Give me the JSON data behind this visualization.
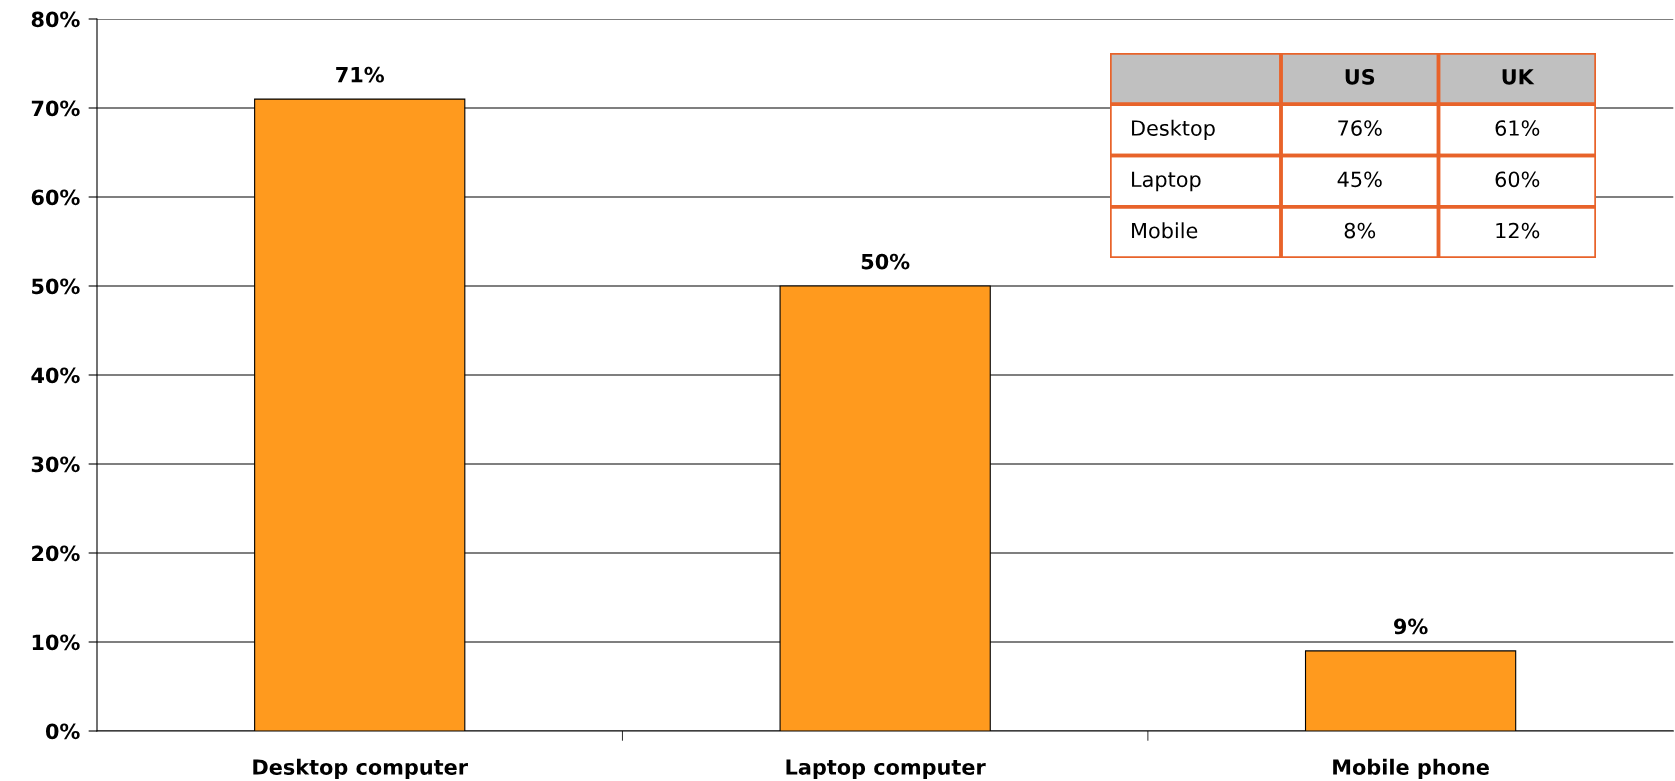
{
  "chart_data": [
    {
      "type": "bar",
      "categories": [
        "Desktop computer",
        "Laptop computer",
        "Mobile phone"
      ],
      "values": [
        71,
        50,
        9
      ],
      "color": "#ff9a1e",
      "value_labels": [
        "71%",
        "50%",
        "9%"
      ],
      "ylim": [
        0,
        80
      ],
      "yticks": [
        {
          "value": 0,
          "label": "0%"
        },
        {
          "value": 10,
          "label": "10%"
        },
        {
          "value": 20,
          "label": "20%"
        },
        {
          "value": 30,
          "label": "30%"
        },
        {
          "value": 40,
          "label": "40%"
        },
        {
          "value": 50,
          "label": "50%"
        },
        {
          "value": 60,
          "label": "60%"
        },
        {
          "value": 70,
          "label": "70%"
        },
        {
          "value": 80,
          "label": "80%"
        }
      ],
      "grid": "y"
    },
    {
      "type": "other",
      "categories": [
        "US",
        "UK"
      ],
      "y_categories": [
        "Desktop",
        "Laptop",
        "Mobile"
      ],
      "cell_labels": [
        [
          "76%",
          "61%"
        ],
        [
          "45%",
          "60%"
        ],
        [
          "8%",
          "12%"
        ]
      ]
    }
  ]
}
